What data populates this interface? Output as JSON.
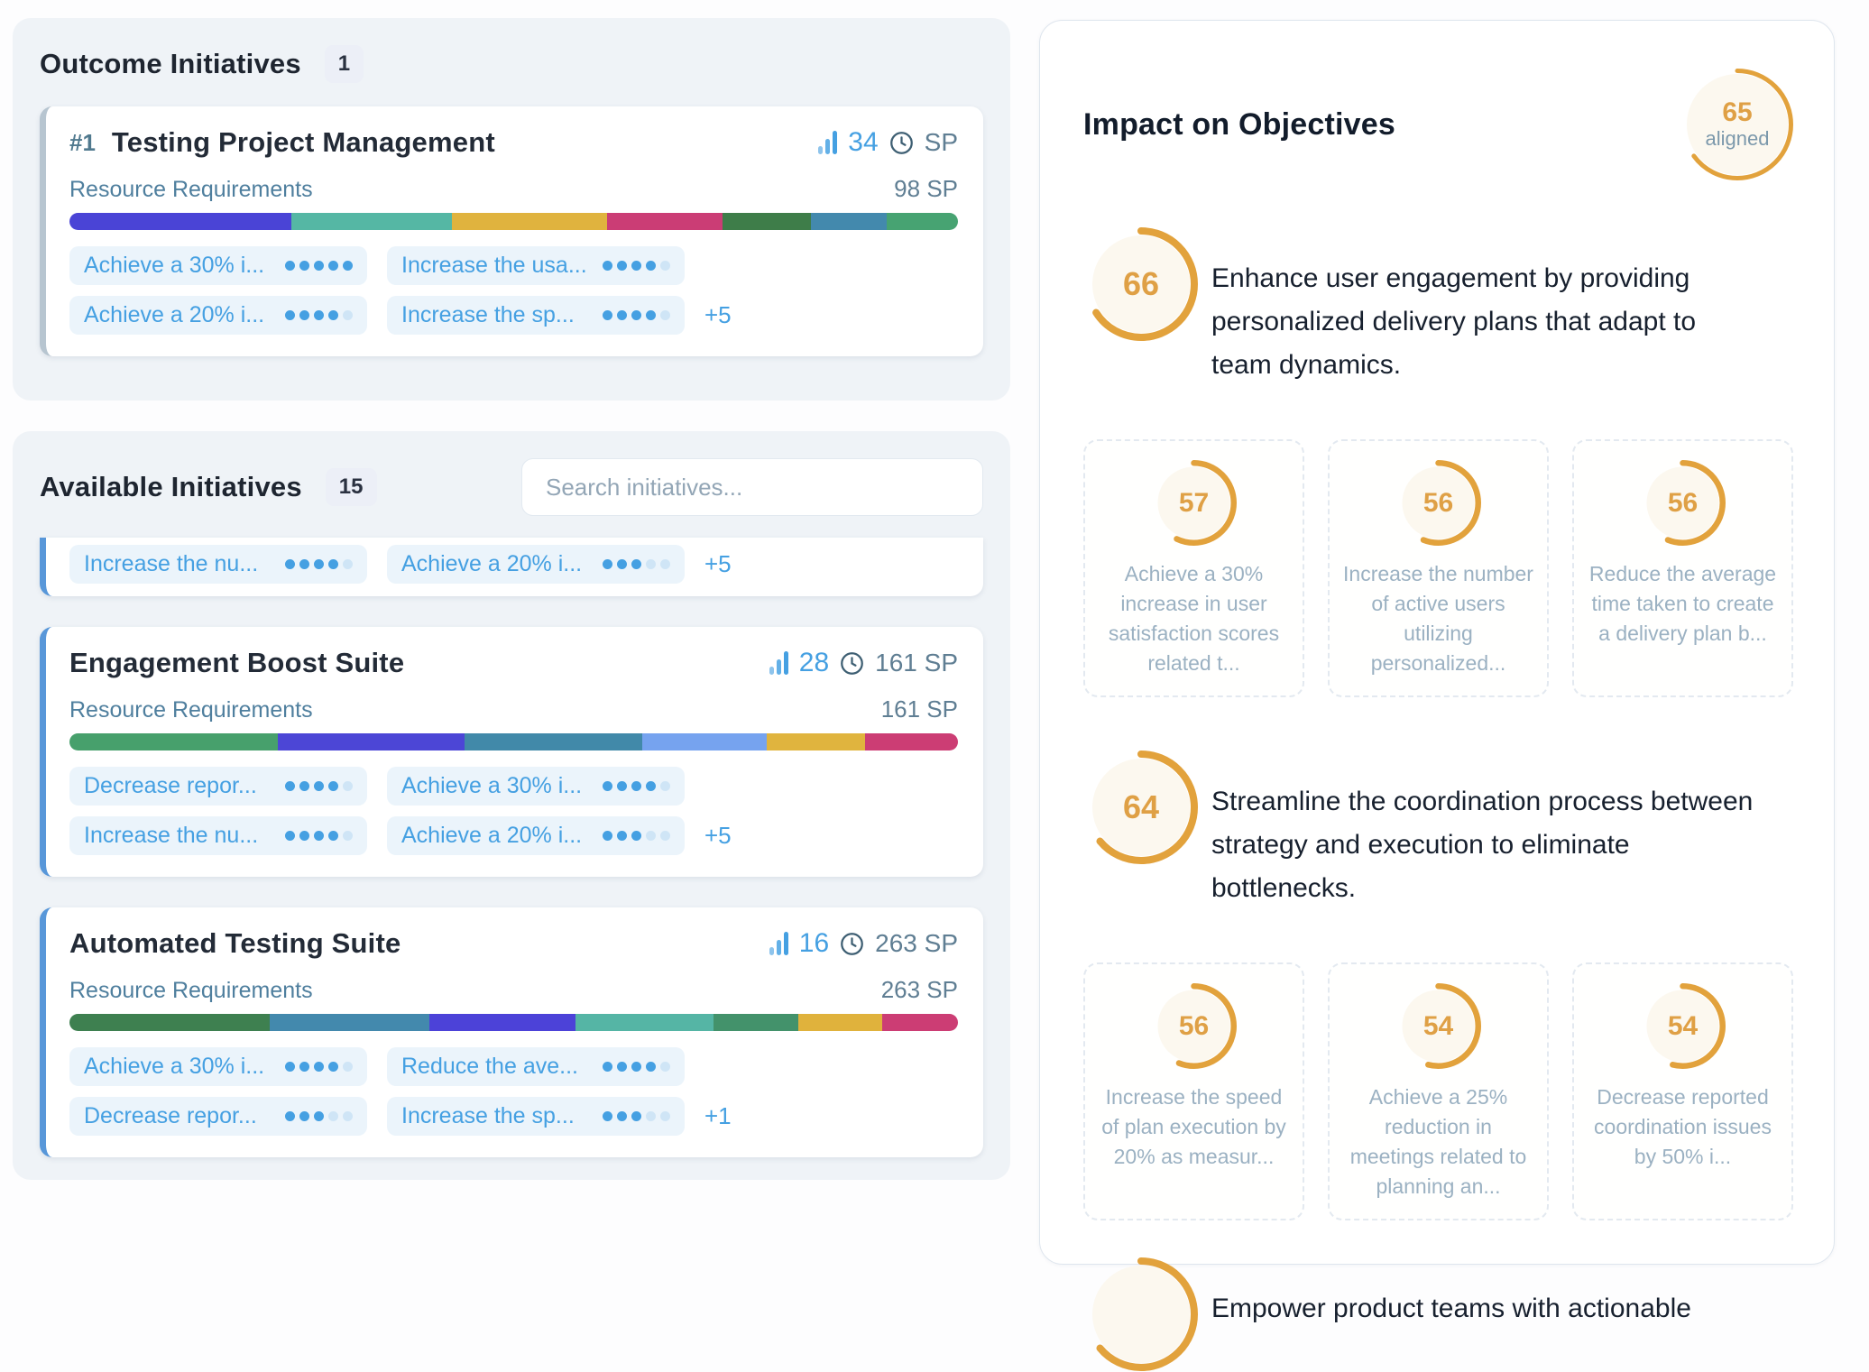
{
  "colors": {
    "accent_blue": "#45a0e2",
    "orange": "#e2a23c",
    "dot_empty": "#cfe5f6",
    "outcome_stripe": "#b7c5d0",
    "available_stripe": "#5897d9",
    "panel_bg": "#eff3f7",
    "ring_bg_cream": "#fcf8ef"
  },
  "left": {
    "outcome": {
      "title": "Outcome Initiatives",
      "count": "1",
      "card": {
        "rank": "#1",
        "title": "Testing Project Management",
        "impact": "34",
        "sp": "SP",
        "resource_label": "Resource Requirements",
        "resource_total": "98 SP",
        "bar": [
          {
            "color": "#4a44d6",
            "pct": 25
          },
          {
            "color": "#55b7a4",
            "pct": 18
          },
          {
            "color": "#e0b33e",
            "pct": 17.5
          },
          {
            "color": "#cb3d75",
            "pct": 13
          },
          {
            "color": "#3e7d49",
            "pct": 10
          },
          {
            "color": "#4389ad",
            "pct": 8.5
          },
          {
            "color": "#47a372",
            "pct": 8
          }
        ],
        "tags": [
          {
            "label": "Achieve a 30% i...",
            "filled": 5,
            "total": 5
          },
          {
            "label": "Increase the usa...",
            "filled": 4,
            "total": 5
          },
          {
            "label": "Achieve a 20% i...",
            "filled": 4,
            "total": 5
          },
          {
            "label": "Increase the sp...",
            "filled": 4,
            "total": 5
          }
        ],
        "more": "+5"
      }
    },
    "available": {
      "title": "Available Initiatives",
      "count": "15",
      "search_placeholder": "Search initiatives...",
      "partial_card": {
        "tags": [
          {
            "label": "Increase the nu...",
            "filled": 4,
            "total": 5
          },
          {
            "label": "Achieve a 20% i...",
            "filled": 3,
            "total": 5
          }
        ],
        "more": "+5"
      },
      "cards": [
        {
          "title": "Engagement Boost Suite",
          "impact": "28",
          "sp": "161 SP",
          "resource_label": "Resource Requirements",
          "resource_total": "161 SP",
          "bar": [
            {
              "color": "#47a06c",
              "pct": 23.5
            },
            {
              "color": "#4c46d6",
              "pct": 21
            },
            {
              "color": "#4189a9",
              "pct": 20
            },
            {
              "color": "#76a3ef",
              "pct": 14
            },
            {
              "color": "#e0b43e",
              "pct": 11
            },
            {
              "color": "#cc3d74",
              "pct": 10.5
            }
          ],
          "tags": [
            {
              "label": "Decrease repor...",
              "filled": 4,
              "total": 5
            },
            {
              "label": "Achieve a 30% i...",
              "filled": 4,
              "total": 5
            },
            {
              "label": "Increase the nu...",
              "filled": 4,
              "total": 5
            },
            {
              "label": "Achieve a 20% i...",
              "filled": 3,
              "total": 5
            }
          ],
          "more": "+5"
        },
        {
          "title": "Automated Testing Suite",
          "impact": "16",
          "sp": "263 SP",
          "resource_label": "Resource Requirements",
          "resource_total": "263 SP",
          "bar": [
            {
              "color": "#3e8050",
              "pct": 22.5
            },
            {
              "color": "#4389ad",
              "pct": 18
            },
            {
              "color": "#4c42d8",
              "pct": 16.5
            },
            {
              "color": "#55b5a5",
              "pct": 15.5
            },
            {
              "color": "#43926b",
              "pct": 9.5
            },
            {
              "color": "#e0b23c",
              "pct": 9.5
            },
            {
              "color": "#cc3d74",
              "pct": 8.5
            }
          ],
          "tags": [
            {
              "label": "Achieve a 30% i...",
              "filled": 4,
              "total": 5
            },
            {
              "label": "Reduce the ave...",
              "filled": 4,
              "total": 5
            },
            {
              "label": "Decrease repor...",
              "filled": 3,
              "total": 5
            },
            {
              "label": "Increase the sp...",
              "filled": 3,
              "total": 5
            }
          ],
          "more": "+1"
        }
      ]
    }
  },
  "right": {
    "title": "Impact on Objectives",
    "badge": {
      "value": "65",
      "label": "aligned"
    },
    "objectives": [
      {
        "score": "66",
        "text": "Enhance user engagement by providing personalized delivery plans that adapt to team dynamics.",
        "krs": [
          {
            "score": "57",
            "text": "Achieve a 30% increase in user satisfaction scores related t..."
          },
          {
            "score": "56",
            "text": "Increase the number of active users utilizing personalized..."
          },
          {
            "score": "56",
            "text": "Reduce the average time taken to create a delivery plan b..."
          }
        ]
      },
      {
        "score": "64",
        "text": "Streamline the coordination process between strategy and execution to eliminate bottlenecks.",
        "krs": [
          {
            "score": "56",
            "text": "Increase the speed of plan execution by 20% as measur..."
          },
          {
            "score": "54",
            "text": "Achieve a 25% reduction in meetings related to planning an..."
          },
          {
            "score": "54",
            "text": "Decrease reported coordination issues by 50% i..."
          }
        ]
      },
      {
        "text": "Empower product teams with actionable"
      }
    ]
  }
}
